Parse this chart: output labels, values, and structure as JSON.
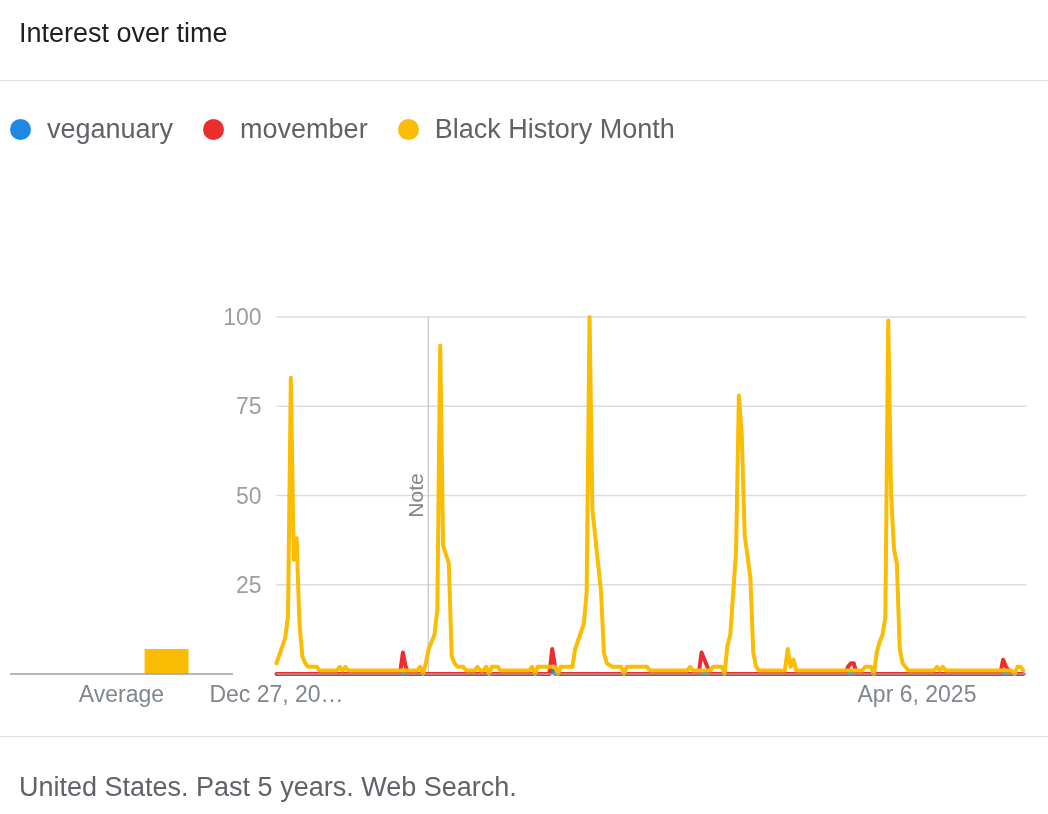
{
  "chart_data": [
    {
      "type": "bar",
      "title": "Interest over time",
      "categories": [
        "Average"
      ],
      "series": [
        {
          "color": "#1e88e5",
          "values": [
            0
          ]
        },
        {
          "color": "#ea2d2d",
          "values": [
            0
          ]
        },
        {
          "color": "#fbbc04",
          "values": [
            7
          ]
        }
      ],
      "ylim": [
        0,
        100
      ],
      "tick_labels": "x"
    },
    {
      "type": "line",
      "annotations": [
        "United States. Past 5 years. Web Search."
      ],
      "series": [
        {
          "name": "veganuary",
          "color": "#1e88e5",
          "x": [
            "2021-10-24",
            "2021-10-31",
            "2021-11-07",
            "2021-11-14",
            "2022-06-05",
            "2022-10-23",
            "2022-10-30",
            "2022-11-06",
            "2022-11-13",
            "2023-06-04",
            "2023-10-22",
            "2023-10-29",
            "2023-11-05",
            "2023-11-12",
            "2023-11-19",
            "2024-06-02",
            "2024-10-13",
            "2024-10-20",
            "2024-10-27",
            "2024-11-03",
            "2024-11-10",
            "2025-06-01",
            "2025-10-26",
            "2025-11-02",
            "2025-11-09",
            "2025-11-16",
            "2025-11-23"
          ],
          "values": [
            0,
            0,
            0,
            0,
            null,
            0,
            1,
            0,
            0,
            null,
            0,
            0,
            0,
            0,
            0,
            null,
            0,
            0,
            0,
            0,
            0,
            null,
            0,
            0,
            0,
            0,
            0
          ]
        },
        {
          "name": "movember",
          "color": "#ea2d2d",
          "x": [
            "2020-12-27",
            "2021-10-24",
            "2021-10-31",
            "2021-11-07",
            "2021-11-14",
            "2022-10-23",
            "2022-10-30",
            "2022-11-06",
            "2022-11-13",
            "2023-10-22",
            "2023-10-29",
            "2023-11-05",
            "2023-11-12",
            "2023-11-19",
            "2024-10-13",
            "2024-10-20",
            "2024-10-27",
            "2024-11-03",
            "2024-11-10",
            "2025-10-26",
            "2025-11-02",
            "2025-11-09",
            "2025-11-16",
            "2025-11-23",
            "2025-12-21"
          ],
          "values": [
            0,
            0,
            6,
            2,
            0,
            0,
            7,
            2,
            0,
            0,
            6,
            4,
            2,
            0,
            0,
            2,
            3,
            3,
            0,
            0,
            4,
            2,
            1,
            0,
            0
          ]
        },
        {
          "name": "Black History Month",
          "color": "#fbbc04",
          "x": [
            "2020-12-27",
            "2021-01-17",
            "2021-01-24",
            "2021-01-31",
            "2021-02-07",
            "2021-02-14",
            "2021-02-21",
            "2021-02-28",
            "2021-03-07",
            "2021-03-14",
            "2021-04-04",
            "2021-04-11",
            "2021-05-23",
            "2021-05-30",
            "2021-06-06",
            "2021-06-13",
            "2021-06-20",
            "2021-12-05",
            "2021-12-12",
            "2021-12-19",
            "2021-12-26",
            "2022-01-02",
            "2022-01-16",
            "2022-01-23",
            "2022-01-30",
            "2022-02-06",
            "2022-02-20",
            "2022-02-27",
            "2022-03-06",
            "2022-03-13",
            "2022-03-27",
            "2022-04-03",
            "2022-04-24",
            "2022-05-01",
            "2022-05-08",
            "2022-05-15",
            "2022-05-22",
            "2022-05-29",
            "2022-06-05",
            "2022-06-19",
            "2022-06-26",
            "2022-09-04",
            "2022-09-11",
            "2022-09-18",
            "2022-09-25",
            "2022-11-06",
            "2022-11-13",
            "2022-11-20",
            "2022-12-18",
            "2022-12-25",
            "2023-01-15",
            "2023-01-22",
            "2023-01-29",
            "2023-02-05",
            "2023-02-26",
            "2023-03-05",
            "2023-03-12",
            "2023-03-26",
            "2023-04-16",
            "2023-04-23",
            "2023-04-30",
            "2023-06-18",
            "2023-06-25",
            "2023-09-24",
            "2023-10-01",
            "2023-10-08",
            "2023-11-19",
            "2023-11-26",
            "2023-12-17",
            "2023-12-24",
            "2023-12-31",
            "2024-01-07",
            "2024-01-21",
            "2024-01-28",
            "2024-02-04",
            "2024-02-11",
            "2024-02-25",
            "2024-03-03",
            "2024-03-10",
            "2024-03-17",
            "2024-05-19",
            "2024-05-26",
            "2024-06-02",
            "2024-06-09",
            "2024-06-16",
            "2024-11-24",
            "2024-12-01",
            "2024-12-15",
            "2024-12-22",
            "2024-12-29",
            "2025-01-05",
            "2025-01-12",
            "2025-01-19",
            "2025-01-26",
            "2025-02-02",
            "2025-02-09",
            "2025-02-16",
            "2025-02-23",
            "2025-03-02",
            "2025-03-09",
            "2025-03-16",
            "2025-05-18",
            "2025-05-25",
            "2025-06-01",
            "2025-06-08",
            "2025-06-15",
            "2025-11-23",
            "2025-11-30",
            "2025-12-07",
            "2025-12-14",
            "2025-12-21"
          ],
          "values": [
            3,
            10,
            16,
            83,
            32,
            38,
            14,
            5,
            3,
            2,
            2,
            1,
            1,
            2,
            1,
            2,
            1,
            1,
            2,
            0,
            3,
            7,
            11,
            18,
            92,
            36,
            31,
            5,
            3,
            2,
            2,
            1,
            1,
            2,
            1,
            1,
            2,
            0,
            2,
            2,
            1,
            1,
            2,
            0,
            2,
            2,
            0,
            2,
            2,
            7,
            14,
            23,
            100,
            46,
            23,
            6,
            3,
            2,
            2,
            0,
            2,
            2,
            1,
            1,
            2,
            1,
            1,
            2,
            2,
            0,
            8,
            11,
            34,
            78,
            67,
            39,
            27,
            6,
            2,
            1,
            1,
            7,
            2,
            4,
            1,
            1,
            2,
            2,
            0,
            6,
            9,
            11,
            16,
            99,
            50,
            35,
            31,
            7,
            3,
            2,
            1,
            1,
            2,
            1,
            2,
            1,
            1,
            0,
            2,
            2,
            1
          ]
        }
      ],
      "xlim": [
        "2020-12-27",
        "2025-12-28"
      ],
      "xticks": [
        {
          "value": "2020-12-27",
          "label": "Dec 27, 20…"
        },
        {
          "value": "2025-04-06",
          "label": "Apr 6, 2025"
        }
      ],
      "ylim": [
        0,
        100
      ],
      "yticks": [
        25,
        50,
        75,
        100
      ],
      "grid": "y",
      "legend": "top left",
      "ref_lines": [
        {
          "axis": "x",
          "value": "2022-01-01",
          "label": "Note",
          "color": "#cccccc"
        }
      ]
    }
  ]
}
